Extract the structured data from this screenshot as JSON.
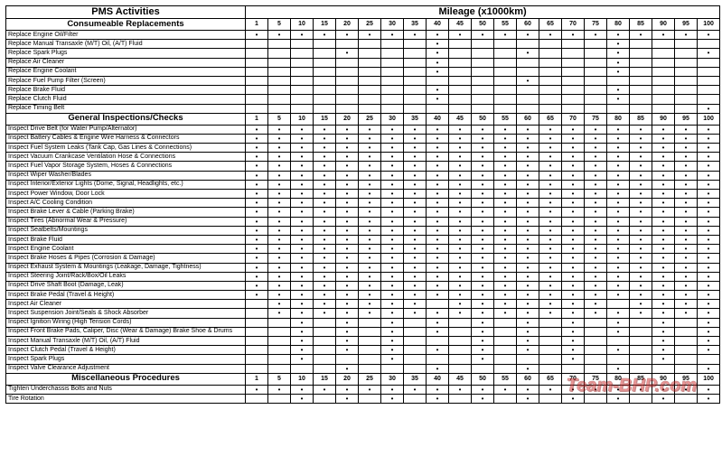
{
  "columns": [
    "1",
    "5",
    "10",
    "15",
    "20",
    "25",
    "30",
    "35",
    "40",
    "45",
    "50",
    "55",
    "60",
    "65",
    "70",
    "75",
    "80",
    "85",
    "90",
    "95",
    "100"
  ],
  "header": {
    "activities": "PMS Activities",
    "mileage": "Mileage (x1000km)"
  },
  "watermark": "Team-BHP.com",
  "sections": [
    {
      "title": "Consumeable Replacements",
      "rows": [
        {
          "label": "Replace Engine Oil/Filter",
          "at": [
            1,
            5,
            10,
            15,
            20,
            25,
            30,
            35,
            40,
            45,
            50,
            55,
            60,
            65,
            70,
            75,
            80,
            85,
            90,
            95,
            100
          ]
        },
        {
          "label": "Replace Manual Transaxle (M/T) Oil, (A/T) Fluid",
          "at": [
            40,
            80
          ]
        },
        {
          "label": "Replace Spark Plugs",
          "at": [
            20,
            40,
            60,
            80,
            100
          ]
        },
        {
          "label": "Replace Air Cleaner",
          "at": [
            40,
            80
          ]
        },
        {
          "label": "Replace Engine Coolant",
          "at": [
            40,
            80
          ]
        },
        {
          "label": "Replace Fuel Pump Filter (Screen)",
          "at": [
            60
          ]
        },
        {
          "label": "Replace Brake Fluid",
          "at": [
            40,
            80
          ]
        },
        {
          "label": "Replace Clutch Fluid",
          "at": [
            40,
            80
          ]
        },
        {
          "label": "Replace Timing Belt",
          "at": [
            100
          ]
        }
      ]
    },
    {
      "title": "General Inspections/Checks",
      "rows": [
        {
          "label": "Inspect Drive Belt (for Water Pump/Alternator)",
          "at": [
            1,
            5,
            10,
            15,
            20,
            25,
            30,
            35,
            40,
            45,
            50,
            55,
            60,
            65,
            70,
            75,
            80,
            85,
            90,
            95,
            100
          ]
        },
        {
          "label": "Inspect Battery Cables & Engine Wire Harness & Connectors",
          "at": [
            1,
            5,
            10,
            15,
            20,
            25,
            30,
            35,
            40,
            45,
            50,
            55,
            60,
            65,
            70,
            75,
            80,
            85,
            90,
            95,
            100
          ]
        },
        {
          "label": "Inspect Fuel System Leaks (Tank Cap, Gas Lines & Connections)",
          "at": [
            1,
            5,
            10,
            15,
            20,
            25,
            30,
            35,
            40,
            45,
            50,
            55,
            60,
            65,
            70,
            75,
            80,
            85,
            90,
            95,
            100
          ]
        },
        {
          "label": "Inspect Vacuum Crankcase Ventilation Hose & Connections",
          "at": [
            1,
            5,
            10,
            15,
            20,
            25,
            30,
            35,
            40,
            45,
            50,
            55,
            60,
            65,
            70,
            75,
            80,
            85,
            90,
            95,
            100
          ]
        },
        {
          "label": "Inspect Fuel Vapor Storage System, Hoses & Connections",
          "at": [
            1,
            5,
            10,
            15,
            20,
            25,
            30,
            35,
            40,
            45,
            50,
            55,
            60,
            65,
            70,
            75,
            80,
            85,
            90,
            95,
            100
          ]
        },
        {
          "label": "Inspect Wiper Washer/Blades",
          "at": [
            1,
            5,
            10,
            15,
            20,
            25,
            30,
            35,
            40,
            45,
            50,
            55,
            60,
            65,
            70,
            75,
            80,
            85,
            90,
            95,
            100
          ]
        },
        {
          "label": "Inspect Interior/Exterior Lights (Dome, Signal, Headlights, etc.)",
          "at": [
            1,
            5,
            10,
            15,
            20,
            25,
            30,
            35,
            40,
            45,
            50,
            55,
            60,
            65,
            70,
            75,
            80,
            85,
            90,
            95,
            100
          ]
        },
        {
          "label": "Inspect Power Window, Door Lock",
          "at": [
            1,
            5,
            10,
            15,
            20,
            25,
            30,
            35,
            40,
            45,
            50,
            55,
            60,
            65,
            70,
            75,
            80,
            85,
            90,
            95,
            100
          ]
        },
        {
          "label": "Inspect A/C Cooling Condition",
          "at": [
            1,
            5,
            10,
            15,
            20,
            25,
            30,
            35,
            40,
            45,
            50,
            55,
            60,
            65,
            70,
            75,
            80,
            85,
            90,
            95,
            100
          ]
        },
        {
          "label": "Inspect Brake Lever & Cable (Parking Brake)",
          "at": [
            1,
            5,
            10,
            15,
            20,
            25,
            30,
            35,
            40,
            45,
            50,
            55,
            60,
            65,
            70,
            75,
            80,
            85,
            90,
            95,
            100
          ]
        },
        {
          "label": "Inspect Tires (Abnormal Wear & Pressure)",
          "at": [
            1,
            5,
            10,
            15,
            20,
            25,
            30,
            35,
            40,
            45,
            50,
            55,
            60,
            65,
            70,
            75,
            80,
            85,
            90,
            95,
            100
          ]
        },
        {
          "label": "Inspect Seatbelts/Mountings",
          "at": [
            1,
            5,
            10,
            15,
            20,
            25,
            30,
            35,
            40,
            45,
            50,
            55,
            60,
            65,
            70,
            75,
            80,
            85,
            90,
            95,
            100
          ]
        },
        {
          "label": "Inspect Brake Fluid",
          "at": [
            1,
            5,
            10,
            15,
            20,
            25,
            30,
            35,
            40,
            45,
            50,
            55,
            60,
            65,
            70,
            75,
            80,
            85,
            90,
            95,
            100
          ]
        },
        {
          "label": "Inspect Engine Coolant",
          "at": [
            1,
            5,
            10,
            15,
            20,
            25,
            30,
            35,
            40,
            45,
            50,
            55,
            60,
            65,
            70,
            75,
            80,
            85,
            90,
            95,
            100
          ]
        },
        {
          "label": "Inspect Brake Hoses & Pipes (Corrosion & Damage)",
          "at": [
            1,
            5,
            10,
            15,
            20,
            25,
            30,
            35,
            40,
            45,
            50,
            55,
            60,
            65,
            70,
            75,
            80,
            85,
            90,
            95,
            100
          ]
        },
        {
          "label": "Inspect Exhaust System & Mountings (Leakage, Damage, Tightness)",
          "at": [
            1,
            5,
            10,
            15,
            20,
            25,
            30,
            35,
            40,
            45,
            50,
            55,
            60,
            65,
            70,
            75,
            80,
            85,
            90,
            95,
            100
          ]
        },
        {
          "label": "Inspect Steering Joint/Rack/Box/Oil Leaks",
          "at": [
            1,
            5,
            10,
            15,
            20,
            25,
            30,
            35,
            40,
            45,
            50,
            55,
            60,
            65,
            70,
            75,
            80,
            85,
            90,
            95,
            100
          ]
        },
        {
          "label": "Inspect Drive Shaft Boot (Damage, Leak)",
          "at": [
            1,
            5,
            10,
            15,
            20,
            25,
            30,
            35,
            40,
            45,
            50,
            55,
            60,
            65,
            70,
            75,
            80,
            85,
            90,
            95,
            100
          ]
        },
        {
          "label": "Inspect Brake Pedal (Travel & Height)",
          "at": [
            1,
            5,
            10,
            15,
            20,
            25,
            30,
            35,
            40,
            45,
            50,
            55,
            60,
            65,
            70,
            75,
            80,
            85,
            90,
            95,
            100
          ]
        },
        {
          "label": "Inspect Air Cleaner",
          "at": [
            5,
            10,
            15,
            20,
            25,
            30,
            35,
            45,
            50,
            55,
            60,
            65,
            70,
            75,
            85,
            90,
            95,
            100
          ]
        },
        {
          "label": "Inspect Suspension Joint/Seals & Shock Absorber",
          "at": [
            5,
            10,
            15,
            20,
            25,
            30,
            35,
            40,
            45,
            50,
            55,
            60,
            65,
            70,
            75,
            80,
            85,
            90,
            95,
            100
          ]
        },
        {
          "label": "Inspect Ignition Wiring (High Tension Cords)",
          "at": [
            10,
            20,
            30,
            40,
            50,
            60,
            70,
            80,
            90,
            100
          ]
        },
        {
          "label": "Inspect Front Brake Pads, Caliper, Disc (Wear & Damage) Brake Shoe & Drums",
          "at": [
            10,
            20,
            30,
            40,
            50,
            60,
            70,
            80,
            90,
            100
          ]
        },
        {
          "label": "Inspect Manual Transaxle (M/T) Oil, (A/T) Fluid",
          "at": [
            10,
            20,
            30,
            50,
            60,
            70,
            90,
            100
          ]
        },
        {
          "label": "Inspect Clutch Pedal (Travel & Height)",
          "at": [
            10,
            20,
            30,
            40,
            50,
            60,
            70,
            80,
            90,
            100
          ]
        },
        {
          "label": "Inspect Spark Plugs",
          "at": [
            10,
            30,
            50,
            70,
            90
          ]
        },
        {
          "label": "Inspect Valve Clearance Adjustment",
          "at": [
            20,
            40,
            60,
            80,
            100
          ]
        }
      ]
    },
    {
      "title": "Miscellaneous Procedures",
      "rows": [
        {
          "label": "Tighten Underchassis Bolts and Nuts",
          "at": [
            1,
            5,
            10,
            15,
            20,
            25,
            30,
            35,
            40,
            45,
            50,
            55,
            60,
            65,
            70,
            75,
            80,
            85,
            90,
            95,
            100
          ]
        },
        {
          "label": "Tire Rotation",
          "at": [
            10,
            20,
            30,
            40,
            50,
            60,
            70,
            80,
            90,
            100
          ]
        }
      ]
    }
  ]
}
